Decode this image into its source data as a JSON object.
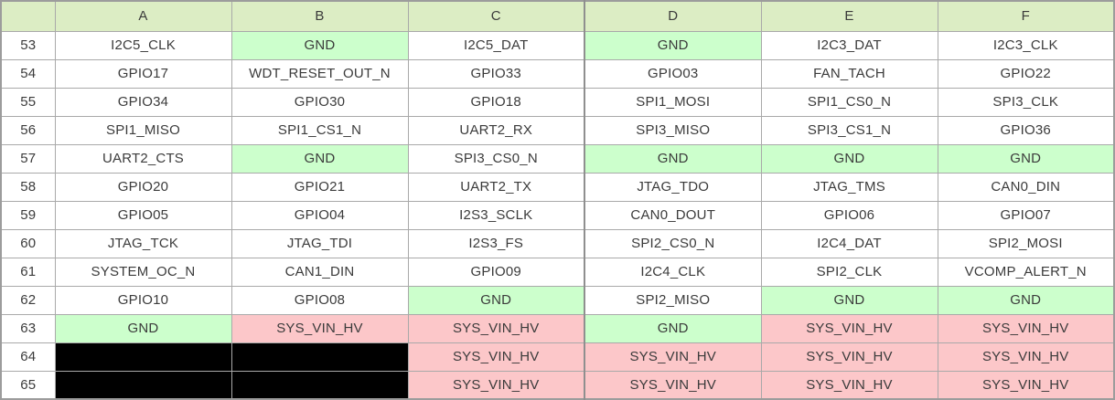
{
  "table": {
    "corner_label": "",
    "column_headers": [
      "A",
      "B",
      "C",
      "D",
      "E",
      "F"
    ],
    "rows": [
      {
        "num": "53",
        "cells": [
          {
            "text": "I2C5_CLK",
            "bg": "white"
          },
          {
            "text": "GND",
            "bg": "green"
          },
          {
            "text": "I2C5_DAT",
            "bg": "white"
          },
          {
            "text": "GND",
            "bg": "green"
          },
          {
            "text": "I2C3_DAT",
            "bg": "white"
          },
          {
            "text": "I2C3_CLK",
            "bg": "white"
          }
        ]
      },
      {
        "num": "54",
        "cells": [
          {
            "text": "GPIO17",
            "bg": "white"
          },
          {
            "text": "WDT_RESET_OUT_N",
            "bg": "white"
          },
          {
            "text": "GPIO33",
            "bg": "white"
          },
          {
            "text": "GPIO03",
            "bg": "white"
          },
          {
            "text": "FAN_TACH",
            "bg": "white"
          },
          {
            "text": "GPIO22",
            "bg": "white"
          }
        ]
      },
      {
        "num": "55",
        "cells": [
          {
            "text": "GPIO34",
            "bg": "white"
          },
          {
            "text": "GPIO30",
            "bg": "white"
          },
          {
            "text": "GPIO18",
            "bg": "white"
          },
          {
            "text": "SPI1_MOSI",
            "bg": "white"
          },
          {
            "text": "SPI1_CS0_N",
            "bg": "white"
          },
          {
            "text": "SPI3_CLK",
            "bg": "white"
          }
        ]
      },
      {
        "num": "56",
        "cells": [
          {
            "text": "SPI1_MISO",
            "bg": "white"
          },
          {
            "text": "SPI1_CS1_N",
            "bg": "white"
          },
          {
            "text": "UART2_RX",
            "bg": "white"
          },
          {
            "text": "SPI3_MISO",
            "bg": "white"
          },
          {
            "text": "SPI3_CS1_N",
            "bg": "white"
          },
          {
            "text": "GPIO36",
            "bg": "white"
          }
        ]
      },
      {
        "num": "57",
        "cells": [
          {
            "text": "UART2_CTS",
            "bg": "white"
          },
          {
            "text": "GND",
            "bg": "green"
          },
          {
            "text": "SPI3_CS0_N",
            "bg": "white"
          },
          {
            "text": "GND",
            "bg": "green"
          },
          {
            "text": "GND",
            "bg": "green"
          },
          {
            "text": "GND",
            "bg": "green"
          }
        ]
      },
      {
        "num": "58",
        "cells": [
          {
            "text": "GPIO20",
            "bg": "white"
          },
          {
            "text": "GPIO21",
            "bg": "white"
          },
          {
            "text": "UART2_TX",
            "bg": "white"
          },
          {
            "text": "JTAG_TDO",
            "bg": "white"
          },
          {
            "text": "JTAG_TMS",
            "bg": "white"
          },
          {
            "text": "CAN0_DIN",
            "bg": "white"
          }
        ]
      },
      {
        "num": "59",
        "cells": [
          {
            "text": "GPIO05",
            "bg": "white"
          },
          {
            "text": "GPIO04",
            "bg": "white"
          },
          {
            "text": "I2S3_SCLK",
            "bg": "white"
          },
          {
            "text": "CAN0_DOUT",
            "bg": "white"
          },
          {
            "text": "GPIO06",
            "bg": "white"
          },
          {
            "text": "GPIO07",
            "bg": "white"
          }
        ]
      },
      {
        "num": "60",
        "cells": [
          {
            "text": "JTAG_TCK",
            "bg": "white"
          },
          {
            "text": "JTAG_TDI",
            "bg": "white"
          },
          {
            "text": "I2S3_FS",
            "bg": "white"
          },
          {
            "text": "SPI2_CS0_N",
            "bg": "white"
          },
          {
            "text": "I2C4_DAT",
            "bg": "white"
          },
          {
            "text": "SPI2_MOSI",
            "bg": "white"
          }
        ]
      },
      {
        "num": "61",
        "cells": [
          {
            "text": "SYSTEM_OC_N",
            "bg": "white"
          },
          {
            "text": "CAN1_DIN",
            "bg": "white"
          },
          {
            "text": "GPIO09",
            "bg": "white"
          },
          {
            "text": "I2C4_CLK",
            "bg": "white"
          },
          {
            "text": "SPI2_CLK",
            "bg": "white"
          },
          {
            "text": "VCOMP_ALERT_N",
            "bg": "white"
          }
        ]
      },
      {
        "num": "62",
        "cells": [
          {
            "text": "GPIO10",
            "bg": "white"
          },
          {
            "text": "GPIO08",
            "bg": "white"
          },
          {
            "text": "GND",
            "bg": "green"
          },
          {
            "text": "SPI2_MISO",
            "bg": "white"
          },
          {
            "text": "GND",
            "bg": "green"
          },
          {
            "text": "GND",
            "bg": "green"
          }
        ]
      },
      {
        "num": "63",
        "cells": [
          {
            "text": "GND",
            "bg": "green"
          },
          {
            "text": "SYS_VIN_HV",
            "bg": "pink"
          },
          {
            "text": "SYS_VIN_HV",
            "bg": "pink"
          },
          {
            "text": "GND",
            "bg": "green"
          },
          {
            "text": "SYS_VIN_HV",
            "bg": "pink"
          },
          {
            "text": "SYS_VIN_HV",
            "bg": "pink"
          }
        ]
      },
      {
        "num": "64",
        "cells": [
          {
            "text": "",
            "bg": "black"
          },
          {
            "text": "",
            "bg": "black"
          },
          {
            "text": "SYS_VIN_HV",
            "bg": "pink"
          },
          {
            "text": "SYS_VIN_HV",
            "bg": "pink"
          },
          {
            "text": "SYS_VIN_HV",
            "bg": "pink"
          },
          {
            "text": "SYS_VIN_HV",
            "bg": "pink"
          }
        ]
      },
      {
        "num": "65",
        "cells": [
          {
            "text": "",
            "bg": "black"
          },
          {
            "text": "",
            "bg": "black"
          },
          {
            "text": "SYS_VIN_HV",
            "bg": "pink"
          },
          {
            "text": "SYS_VIN_HV",
            "bg": "pink"
          },
          {
            "text": "SYS_VIN_HV",
            "bg": "pink"
          },
          {
            "text": "SYS_VIN_HV",
            "bg": "pink"
          }
        ]
      }
    ]
  },
  "colors": {
    "header_bg": "#dcedc4",
    "green": "#ccffcc",
    "pink": "#fcc7c9",
    "black": "#000000",
    "white": "#ffffff",
    "grid_border": "#a9a9a9",
    "outer_border": "#9c9c9c",
    "text": "#3b3b3b"
  }
}
